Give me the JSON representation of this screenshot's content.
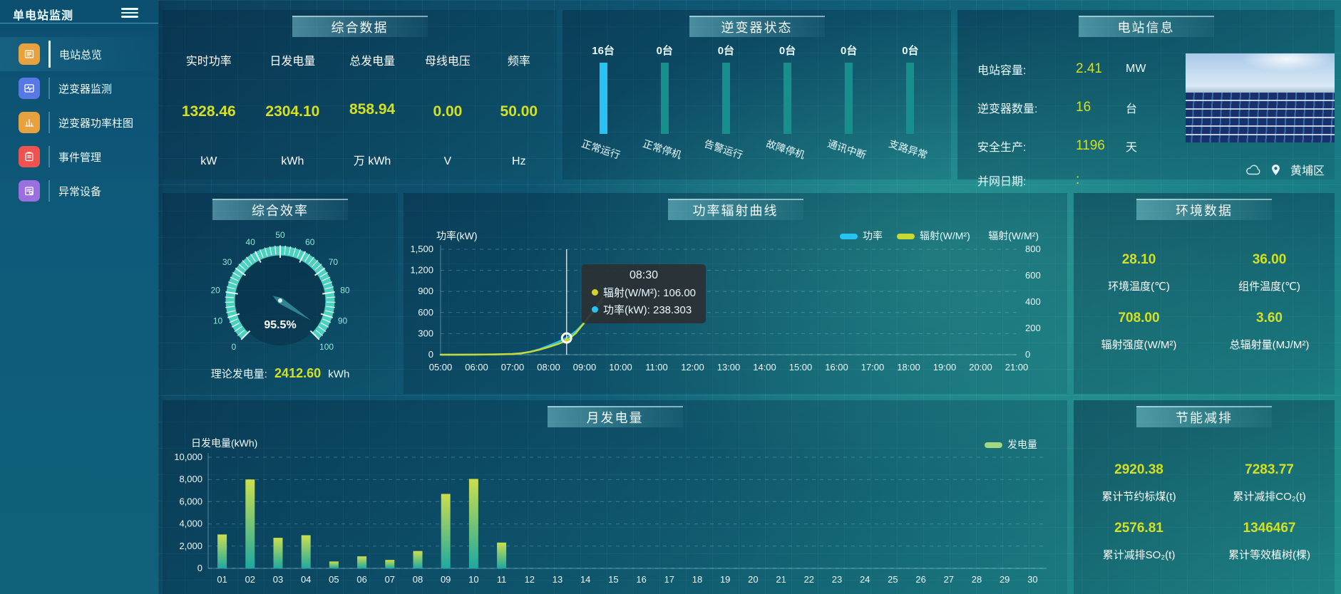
{
  "app": {
    "title": "单电站监测"
  },
  "sidebar": {
    "items": [
      {
        "label": "电站总览",
        "icon": "overview-icon",
        "color": "#e7a23f",
        "active": true
      },
      {
        "label": "逆变器监测",
        "icon": "inverter-monitor-icon",
        "color": "#5878e6",
        "active": false
      },
      {
        "label": "逆变器功率柱图",
        "icon": "power-bars-icon",
        "color": "#e7a23f",
        "active": false
      },
      {
        "label": "事件管理",
        "icon": "event-manage-icon",
        "color": "#ef5350",
        "active": false
      },
      {
        "label": "异常设备",
        "icon": "abnormal-device-icon",
        "color": "#9c6fe0",
        "active": false
      }
    ]
  },
  "summary": {
    "title": "综合数据",
    "metrics": [
      {
        "label": "实时功率",
        "value": "1328.46",
        "unit": "kW"
      },
      {
        "label": "日发电量",
        "value": "2304.10",
        "unit": "kWh"
      },
      {
        "label": "总发电量",
        "value": "858.94",
        "unit": "万 kWh"
      },
      {
        "label": "母线电压",
        "value": "0.00",
        "unit": "V"
      },
      {
        "label": "频率",
        "value": "50.00",
        "unit": "Hz"
      }
    ]
  },
  "inverter_status": {
    "title": "逆变器状态",
    "highlight_color": "#29c3f3",
    "normal_color": "#178f8d",
    "bars": [
      {
        "count": "16台",
        "label": "正常运行",
        "highlight": true
      },
      {
        "count": "0台",
        "label": "正常停机",
        "highlight": false
      },
      {
        "count": "0台",
        "label": "告警运行",
        "highlight": false
      },
      {
        "count": "0台",
        "label": "故障停机",
        "highlight": false
      },
      {
        "count": "0台",
        "label": "通讯中断",
        "highlight": false
      },
      {
        "count": "0台",
        "label": "支路异常",
        "highlight": false
      }
    ]
  },
  "station_info": {
    "title": "电站信息",
    "rows": [
      {
        "label": "电站容量:",
        "value": "2.41",
        "unit": "MW"
      },
      {
        "label": "逆变器数量:",
        "value": "16",
        "unit": "台"
      },
      {
        "label": "安全生产:",
        "value": "1196",
        "unit": "天"
      },
      {
        "label": "并网日期: ",
        "value": ":",
        "unit": ""
      }
    ],
    "location": "黄埔区"
  },
  "efficiency": {
    "title": "综合效率",
    "value": 95.5,
    "value_label": "95.5%",
    "tick_labels": [
      "0",
      "10",
      "20",
      "30",
      "40",
      "50",
      "60",
      "70",
      "80",
      "90",
      "100"
    ],
    "ring_color": "#4ad1c0",
    "footer_label": "理论发电量:",
    "footer_value": "2412.60",
    "footer_unit": "kWh"
  },
  "environment": {
    "title": "环境数据",
    "metrics": [
      {
        "value": "28.10",
        "label": "环境温度(℃)"
      },
      {
        "value": "36.00",
        "label": "组件温度(℃)"
      },
      {
        "value": "708.00",
        "label": "辐射强度(W/M²)"
      },
      {
        "value": "3.60",
        "label": "总辐射量(MJ/M²)"
      }
    ]
  },
  "savings": {
    "title": "节能减排",
    "metrics": [
      {
        "value": "2920.38",
        "label": "累计节约标煤(t)"
      },
      {
        "value": "7283.77",
        "label": "累计减排CO₂(t)"
      },
      {
        "value": "2576.81",
        "label": "累计减排SO₂(t)"
      },
      {
        "value": "1346467",
        "label": "累计等效植树(棵)"
      }
    ]
  },
  "chart_data": [
    {
      "id": "power_radiation",
      "type": "line",
      "title": "功率辐射曲线",
      "ylabel_left": "功率(kW)",
      "ylabel_right": "辐射(W/M²)",
      "ylim_left": [
        0,
        1500
      ],
      "ylim_right": [
        0,
        800
      ],
      "yticks_left": [
        "1,500",
        "1,200",
        "900",
        "600",
        "300",
        "0"
      ],
      "yticks_right": [
        "800",
        "600",
        "400",
        "200",
        "0"
      ],
      "x_range_hours": [
        5,
        21
      ],
      "x_ticks": [
        "05:00",
        "06:00",
        "07:00",
        "08:00",
        "09:00",
        "10:00",
        "11:00",
        "12:00",
        "13:00",
        "14:00",
        "15:00",
        "16:00",
        "17:00",
        "18:00",
        "19:00",
        "20:00",
        "21:00"
      ],
      "legend": [
        {
          "name": "功率",
          "color": "#29c3f3"
        },
        {
          "name": "辐射(W/M²)",
          "color": "#c9d832"
        }
      ],
      "legend_position": "top-right",
      "grid": true,
      "series": [
        {
          "name": "功率",
          "color": "#29c3f3",
          "axis": "left",
          "points": [
            [
              5,
              0
            ],
            [
              5.5,
              0
            ],
            [
              6,
              1
            ],
            [
              6.5,
              4
            ],
            [
              7,
              12
            ],
            [
              7.25,
              22
            ],
            [
              7.5,
              42
            ],
            [
              7.75,
              78
            ],
            [
              8,
              128
            ],
            [
              8.25,
              178
            ],
            [
              8.5,
              238.3
            ],
            [
              8.75,
              330
            ],
            [
              9,
              460
            ],
            [
              9.25,
              610
            ],
            [
              9.5,
              760
            ]
          ]
        },
        {
          "name": "辐射(W/M²)",
          "color": "#c9d832",
          "axis": "right",
          "points": [
            [
              5,
              0
            ],
            [
              5.5,
              0
            ],
            [
              6,
              1
            ],
            [
              6.5,
              2
            ],
            [
              7,
              5
            ],
            [
              7.25,
              11
            ],
            [
              7.5,
              22
            ],
            [
              7.75,
              38
            ],
            [
              8,
              58
            ],
            [
              8.25,
              80
            ],
            [
              8.5,
              106
            ],
            [
              8.75,
              162
            ],
            [
              9,
              245
            ],
            [
              9.25,
              338
            ],
            [
              9.5,
              432
            ]
          ]
        }
      ],
      "tooltip": {
        "time": "08:30",
        "hover_hour": 8.5,
        "rows": [
          {
            "color": "#d4d327",
            "text": "辐射(W/M²): 106.00"
          },
          {
            "color": "#29c3f3",
            "text": "功率(kW): 238.303"
          }
        ]
      }
    },
    {
      "id": "monthly_energy",
      "type": "bar",
      "title": "月发电量",
      "ylabel": "日发电量(kWh)",
      "ylim": [
        0,
        10000
      ],
      "yticks": [
        "10,000",
        "8,000",
        "6,000",
        "4,000",
        "2,000",
        "0"
      ],
      "categories": [
        "01",
        "02",
        "03",
        "04",
        "05",
        "06",
        "07",
        "08",
        "09",
        "10",
        "11",
        "12",
        "13",
        "14",
        "15",
        "16",
        "17",
        "18",
        "19",
        "20",
        "21",
        "22",
        "23",
        "24",
        "25",
        "26",
        "27",
        "28",
        "29",
        "30"
      ],
      "values": [
        3050,
        8000,
        2750,
        2980,
        620,
        1080,
        760,
        1560,
        6700,
        8050,
        2320,
        0,
        0,
        0,
        0,
        0,
        0,
        0,
        0,
        0,
        0,
        0,
        0,
        0,
        0,
        0,
        0,
        0,
        0,
        0
      ],
      "legend": [
        {
          "name": "发电量",
          "color": "#a2d87e"
        }
      ],
      "legend_position": "top-right",
      "bar_gradient": [
        "#ccdf4e",
        "#1fa8a0"
      ],
      "grid": true
    }
  ]
}
